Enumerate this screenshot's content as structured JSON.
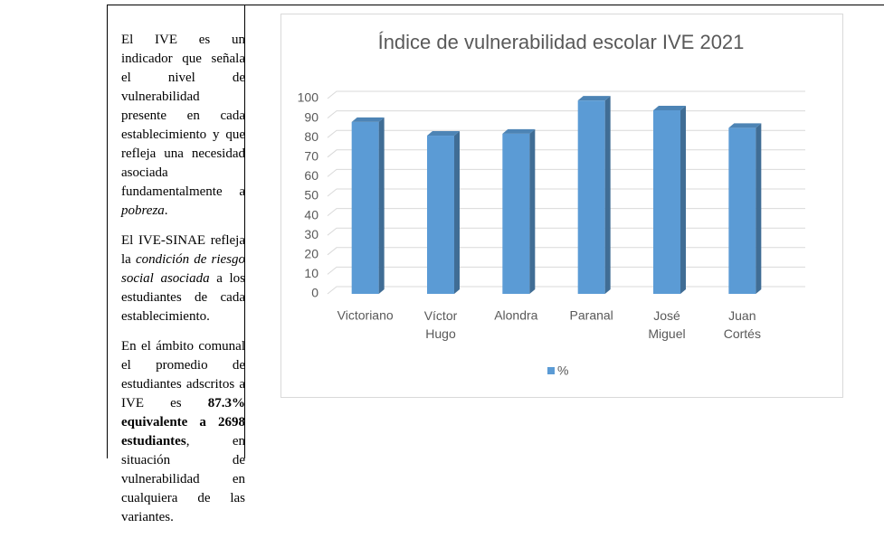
{
  "paragraphs": [
    {
      "runs": [
        {
          "text": "El  IVE es un indicador que señala el nivel de vulnerabilidad presente en cada establecimiento y que refleja una necesidad asociada fundamentalmente a  "
        },
        {
          "text": "pobreza",
          "italic": true
        },
        {
          "text": "."
        }
      ]
    },
    {
      "runs": [
        {
          "text": "El IVE-SINAE refleja la "
        },
        {
          "text": "condición de riesgo social asociada",
          "italic": true
        },
        {
          "text": " a los estudiantes de cada establecimiento."
        }
      ]
    },
    {
      "runs": [
        {
          "text": "En el ámbito comunal el promedio de estudiantes adscritos a IVE es "
        },
        {
          "text": "87.3% equivalente a 2698 estudiantes",
          "bold": true
        },
        {
          "text": ", en situación de vulnerabilidad en cualquiera de las variantes."
        }
      ]
    }
  ],
  "chart_data": {
    "type": "bar",
    "title": "Índice de vulnerabilidad escolar IVE 2021",
    "categories": [
      "Victoriano",
      "Víctor Hugo",
      "Alondra",
      "Paranal",
      "José Miguel",
      "Juan Cortés"
    ],
    "series": [
      {
        "name": "%",
        "color": "#5b9bd5",
        "values": [
          88,
          81,
          82,
          99,
          94,
          85
        ]
      }
    ],
    "ylim": [
      0,
      100
    ],
    "yticks": [
      0,
      10,
      20,
      30,
      40,
      50,
      60,
      70,
      80,
      90,
      100
    ],
    "grid": true,
    "legend": "bottom"
  }
}
